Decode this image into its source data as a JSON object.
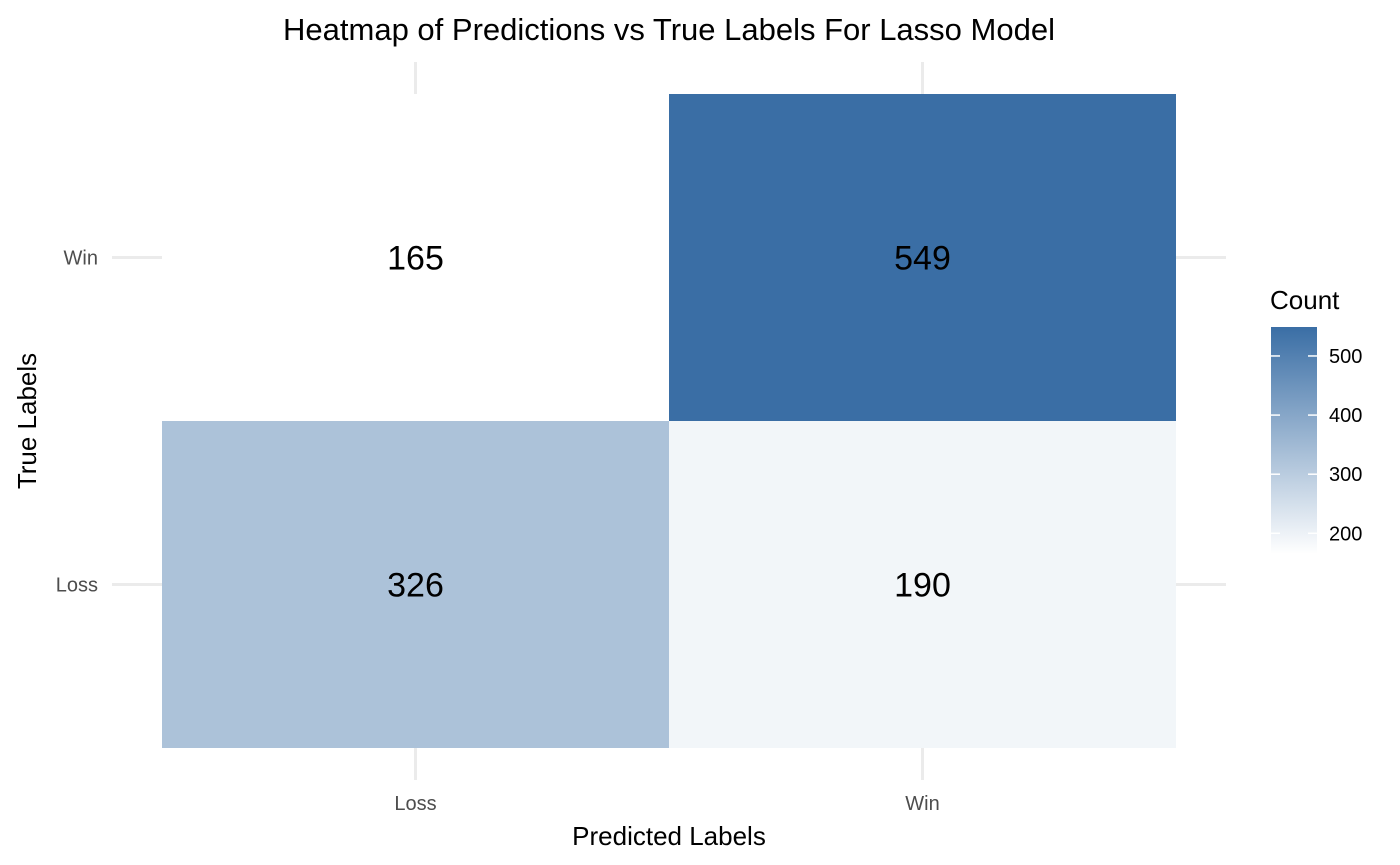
{
  "chart_data": {
    "type": "heatmap",
    "title": "Heatmap of Predictions vs True Labels For Lasso Model",
    "xlabel": "Predicted Labels",
    "ylabel": "True Labels",
    "x_categories": [
      "Loss",
      "Win"
    ],
    "y_categories": [
      "Loss",
      "Win"
    ],
    "cells": [
      {
        "x": "Loss",
        "y": "Win",
        "value": 165
      },
      {
        "x": "Win",
        "y": "Win",
        "value": 549
      },
      {
        "x": "Loss",
        "y": "Loss",
        "value": 326
      },
      {
        "x": "Win",
        "y": "Loss",
        "value": 190
      }
    ],
    "legend": {
      "title": "Count",
      "ticks": [
        200,
        300,
        400,
        500
      ],
      "range": [
        165,
        549
      ],
      "low_color": "#ffffff",
      "high_color": "#3a6ea5"
    },
    "grid": true
  }
}
